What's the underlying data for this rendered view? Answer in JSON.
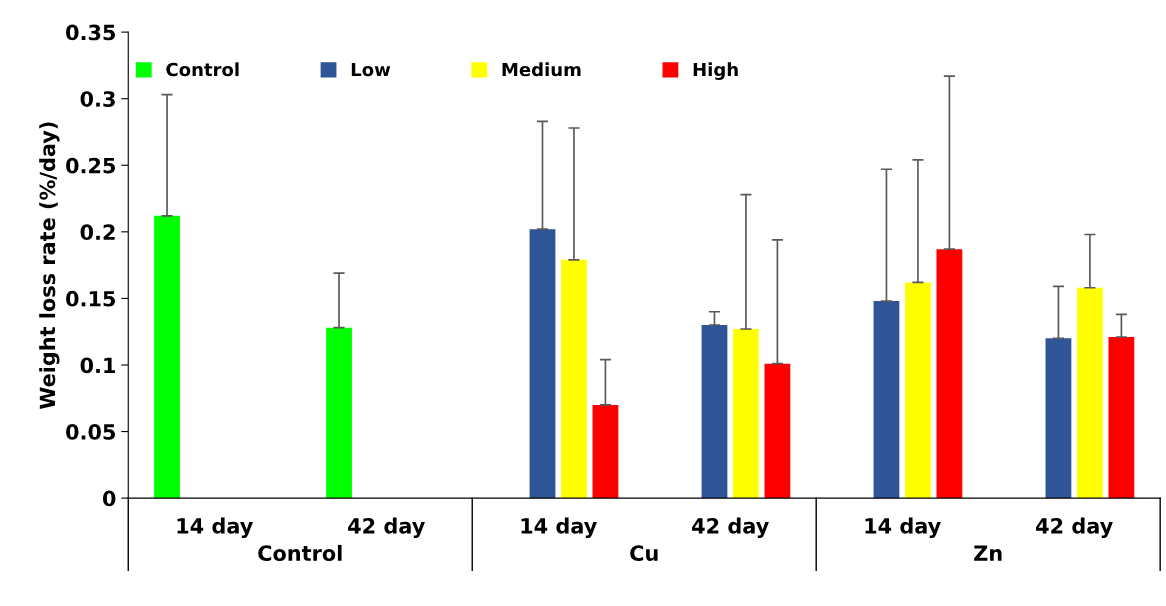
{
  "chart_data": {
    "type": "bar",
    "ylabel": "Weight loss rate (%/day)",
    "categories": [
      "14 day",
      "42 day",
      "14 day",
      "42 day",
      "14 day",
      "42 day"
    ],
    "series": [
      {
        "name": "Control",
        "color": "#00ff00",
        "values": [
          0.212,
          0.128,
          null,
          null,
          null,
          null
        ],
        "errors": [
          [
            0.212,
            0.303
          ],
          [
            0.128,
            0.169
          ],
          null,
          null,
          null,
          null
        ]
      },
      {
        "name": "Low",
        "color": "#2f5597",
        "values": [
          null,
          null,
          0.202,
          0.13,
          0.148,
          0.12
        ],
        "errors": [
          null,
          null,
          [
            0.202,
            0.283
          ],
          [
            0.13,
            0.14
          ],
          [
            0.148,
            0.247
          ],
          [
            0.12,
            0.159
          ]
        ]
      },
      {
        "name": "Medium",
        "color": "#ffff00",
        "values": [
          null,
          null,
          0.179,
          0.127,
          0.162,
          0.158
        ],
        "errors": [
          null,
          null,
          [
            0.179,
            0.278
          ],
          [
            0.127,
            0.228
          ],
          [
            0.162,
            0.254
          ],
          [
            0.158,
            0.198
          ]
        ]
      },
      {
        "name": "High",
        "color": "#ff0000",
        "values": [
          null,
          null,
          0.07,
          0.101,
          0.187,
          0.121
        ],
        "errors": [
          null,
          null,
          [
            0.07,
            0.104
          ],
          [
            0.101,
            0.194
          ],
          [
            0.187,
            0.317
          ],
          [
            0.121,
            0.138
          ]
        ]
      }
    ],
    "annotations": [
      "Control",
      "Cu",
      "Zn"
    ],
    "ylim": [
      0,
      0.35
    ],
    "yticks": [
      0,
      0.05,
      0.1,
      0.15,
      0.2,
      0.25,
      0.3,
      0.35
    ],
    "grid": false,
    "legend": "top"
  }
}
